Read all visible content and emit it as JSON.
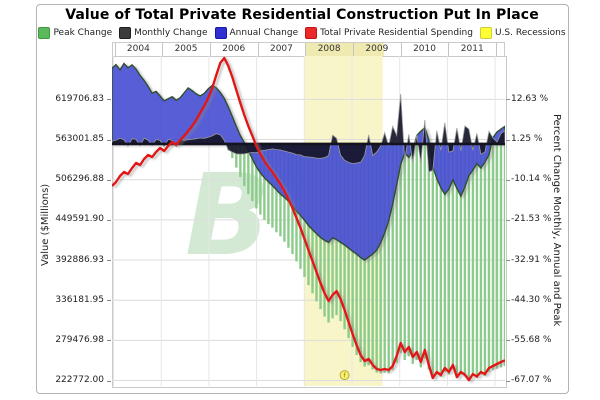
{
  "title": "Value of Total Private Residential Construction Put In Place",
  "legend": [
    {
      "label": "Peak Change",
      "color": "#5cb85c",
      "border": "#3d9b3d"
    },
    {
      "label": "Monthly Change",
      "color": "#3c3c3c",
      "border": "#1f1f1f"
    },
    {
      "label": "Annual Change",
      "color": "#3030d2",
      "border": "#1717ad"
    },
    {
      "label": "Total Private Residential Spending",
      "color": "#ea2a2a",
      "border": "#bf1515"
    },
    {
      "label": "U.S. Recessions",
      "color": "#ffff33",
      "border": "#cdcd3a"
    }
  ],
  "x_axis": {
    "years": [
      "2004",
      "2005",
      "2006",
      "2007",
      "2008",
      "2009",
      "2010",
      "2011"
    ]
  },
  "left_axis": {
    "title": "Value ($Millions)",
    "ticks": [
      "619706.83",
      "563001.85",
      "506296.88",
      "449591.90",
      "392886.93",
      "336181.95",
      "279476.98",
      "222772.00"
    ]
  },
  "right_axis": {
    "title": "Percent Change Monthly, Annual and Peak",
    "ticks": [
      "12.63 %",
      "1.25 %",
      "-10.14 %",
      "-21.53 %",
      "-32.91 %",
      "-44.30 %",
      "-55.68 %",
      "-67.07 %"
    ]
  },
  "watermark": "B",
  "annotation_marker": {
    "glyph": "f",
    "month": "2008-10",
    "pct": -65.5
  },
  "chart_data": {
    "type": "combo: striped-bar + area + area + line",
    "start_month": "2003-12",
    "end_month": "2012-02",
    "left_ylim": [
      215100,
      681000
    ],
    "right_ylim": [
      -68.6,
      24.9
    ],
    "grid": "on",
    "legend_position": "top",
    "recession_band": {
      "start": "2008-01",
      "end": "2009-06",
      "color": "#f8f5c9"
    },
    "series": [
      {
        "name": "Total Private Residential Spending",
        "axis": "left",
        "style": "line",
        "color": "#e21717",
        "values": [
          497500,
          503100,
          511600,
          517200,
          514400,
          522900,
          529900,
          527100,
          535600,
          541200,
          538400,
          545400,
          551100,
          546900,
          553900,
          559600,
          555400,
          562400,
          568100,
          575100,
          582200,
          590700,
          600600,
          610400,
          621700,
          635900,
          654200,
          671200,
          678200,
          666900,
          651400,
          633000,
          614700,
          597700,
          582200,
          568100,
          553900,
          542600,
          532700,
          524300,
          517200,
          508700,
          500300,
          490400,
          479100,
          466400,
          452300,
          438200,
          422600,
          407100,
          391600,
          376000,
          360500,
          346400,
          335100,
          343500,
          349100,
          337800,
          322300,
          305400,
          288400,
          272900,
          258800,
          250300,
          253100,
          244700,
          239000,
          237600,
          239000,
          237600,
          243300,
          257400,
          275700,
          263000,
          270100,
          256000,
          263000,
          248900,
          265800,
          244700,
          226300,
          234800,
          230500,
          240400,
          234800,
          244700,
          227700,
          234800,
          231000,
          223400,
          231900,
          228400,
          234800,
          231900,
          240400,
          243300,
          246100,
          248900,
          251300
        ]
      },
      {
        "name": "Annual Change",
        "axis": "right",
        "style": "area",
        "color": "#3a44d6",
        "values": [
          21.5,
          22.5,
          21.0,
          22.8,
          21.6,
          22.4,
          21.2,
          19.4,
          18.0,
          16.3,
          14.4,
          14.9,
          13.6,
          12.2,
          12.8,
          13.4,
          12.4,
          13.1,
          14.5,
          15.9,
          15.1,
          14.2,
          13.6,
          14.3,
          15.6,
          16.6,
          15.9,
          14.6,
          12.9,
          10.5,
          7.8,
          5.0,
          2.4,
          0.4,
          -1.8,
          -4.3,
          -6.5,
          -8.2,
          -9.6,
          -10.7,
          -11.8,
          -13.0,
          -14.2,
          -15.1,
          -16.2,
          -17.6,
          -19.0,
          -20.3,
          -21.6,
          -23.1,
          -24.3,
          -25.4,
          -26.5,
          -27.3,
          -27.9,
          -26.6,
          -27.1,
          -27.9,
          -28.6,
          -29.5,
          -30.4,
          -31.2,
          -32.2,
          -32.9,
          -32.0,
          -31.2,
          -30.1,
          -28.0,
          -25.2,
          -21.8,
          -17.0,
          -11.5,
          -5.8,
          -2.6,
          -3.8,
          -2.0,
          2.4,
          3.6,
          4.6,
          1.2,
          -6.5,
          -9.8,
          -12.4,
          -14.3,
          -12.8,
          -10.2,
          -12.6,
          -14.8,
          -12.2,
          -9.0,
          -7.4,
          -5.6,
          -6.8,
          -5.2,
          -3.0,
          1.8,
          3.4,
          4.2,
          5.0
        ]
      },
      {
        "name": "Monthly Change",
        "axis": "right",
        "style": "area",
        "color": "#16162a",
        "values": [
          0.8,
          1.1,
          1.6,
          1.2,
          -0.6,
          1.5,
          1.3,
          -0.5,
          1.6,
          1.1,
          -0.5,
          1.3,
          1.0,
          -0.8,
          1.3,
          1.0,
          -0.8,
          1.3,
          1.0,
          1.2,
          1.3,
          1.5,
          1.7,
          1.6,
          1.9,
          2.3,
          2.9,
          2.6,
          1.0,
          -1.7,
          -2.3,
          -2.8,
          -2.9,
          -2.8,
          -2.6,
          -2.4,
          -2.5,
          -2.0,
          -1.8,
          -1.6,
          -1.4,
          -1.6,
          -1.7,
          -2.0,
          -2.3,
          -2.6,
          -3.0,
          -3.1,
          -3.6,
          -3.7,
          -3.8,
          -4.0,
          -4.1,
          -3.9,
          -3.3,
          2.5,
          1.6,
          -3.2,
          -4.6,
          -5.2,
          -5.6,
          -5.4,
          -5.2,
          -3.3,
          2.6,
          -3.3,
          -2.3,
          -0.6,
          3.2,
          -0.6,
          5.0,
          2.4,
          14.2,
          -4.6,
          2.7,
          -5.2,
          2.7,
          -5.4,
          6.8,
          -7.9,
          -7.5,
          3.8,
          -1.8,
          6.0,
          -2.3,
          -2.0,
          4.5,
          -1.9,
          5.1,
          4.2,
          -1.8,
          3.0,
          -2.9,
          -2.3,
          3.6,
          1.7,
          0.6,
          3.0,
          3.8
        ]
      },
      {
        "name": "Peak Change",
        "axis": "right",
        "style": "striped-bars",
        "color": "#8bcb8b",
        "values": [
          0,
          0,
          0,
          0,
          0,
          0,
          0,
          0,
          0,
          0,
          0,
          0,
          0,
          0,
          0,
          0,
          0,
          0,
          0,
          0,
          0,
          0,
          0,
          0,
          0,
          0,
          0,
          0,
          0,
          -1.7,
          -4.0,
          -6.7,
          -9.4,
          -11.9,
          -14.2,
          -16.2,
          -18.3,
          -20.0,
          -21.5,
          -22.7,
          -23.7,
          -25.0,
          -26.2,
          -27.7,
          -29.4,
          -31.2,
          -33.3,
          -35.4,
          -37.7,
          -40.0,
          -42.3,
          -44.6,
          -46.8,
          -48.9,
          -50.6,
          -49.4,
          -48.5,
          -50.2,
          -52.5,
          -55.0,
          -57.5,
          -59.8,
          -61.8,
          -63.1,
          -62.7,
          -63.9,
          -64.8,
          -65.0,
          -64.8,
          -65.0,
          -64.1,
          -62.0,
          -59.3,
          -61.2,
          -60.2,
          -62.3,
          -61.2,
          -63.3,
          -60.8,
          -63.9,
          -66.6,
          -65.4,
          -66.0,
          -64.6,
          -65.4,
          -63.9,
          -66.4,
          -65.4,
          -65.9,
          -67.1,
          -65.8,
          -66.3,
          -65.4,
          -65.8,
          -64.6,
          -64.1,
          -63.7,
          -63.3,
          -62.9
        ]
      }
    ]
  }
}
